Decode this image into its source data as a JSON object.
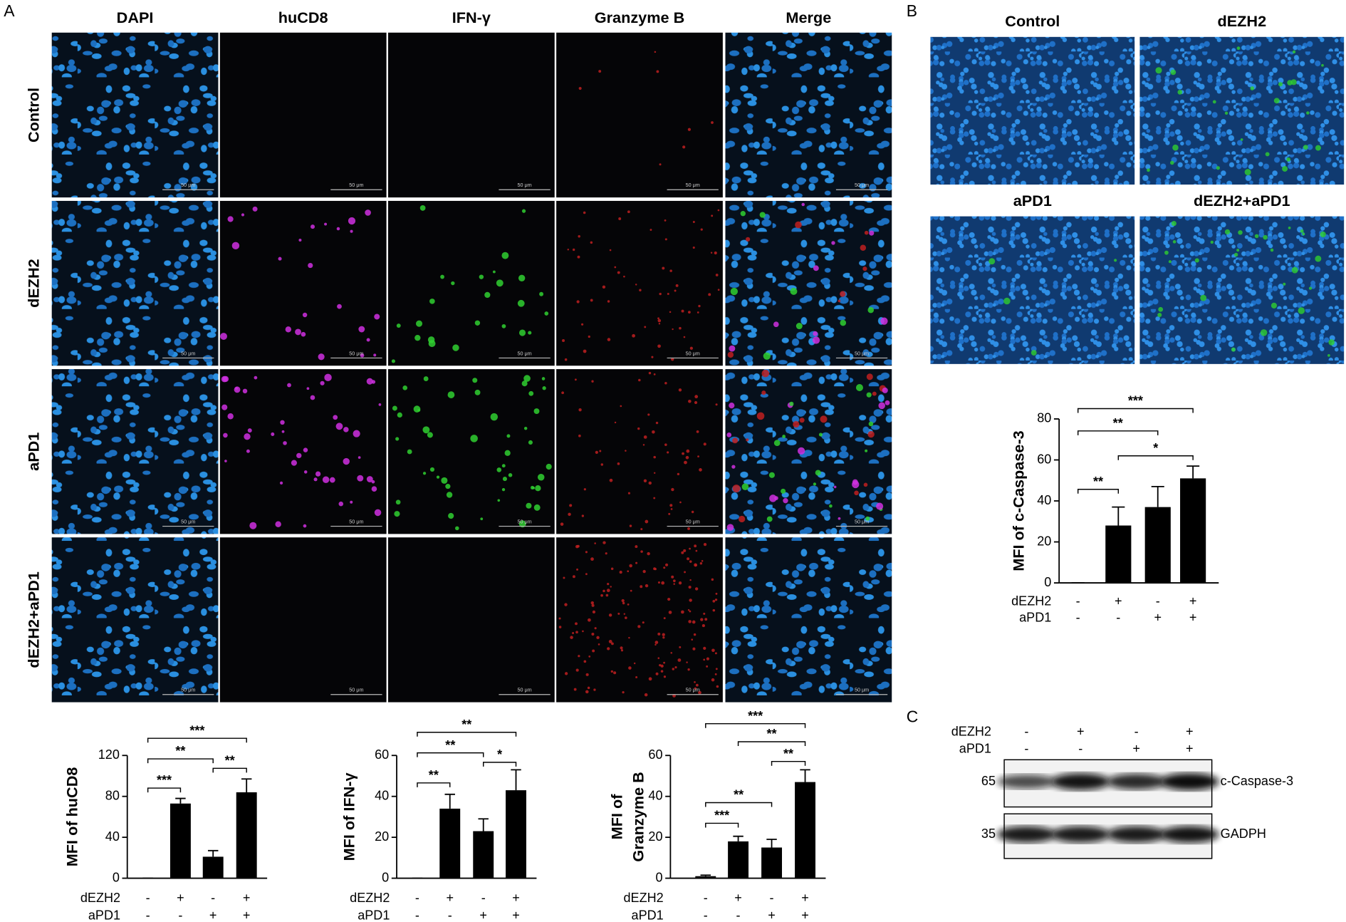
{
  "panel_labels": {
    "a": "A",
    "b": "B",
    "c": "C"
  },
  "panel_a": {
    "columns": [
      "DAPI",
      "huCD8",
      "IFN-γ",
      "Granzyme B",
      "Merge"
    ],
    "rows": [
      "Control",
      "dEZH2",
      "aPD1",
      "dEZH2+aPD1"
    ],
    "scale_bar": "50 μm"
  },
  "panel_b": {
    "images": [
      "Control",
      "dEZH2",
      "aPD1",
      "dEZH2+aPD1"
    ]
  },
  "panel_c": {
    "conditions": [
      {
        "name": "dEZH2",
        "signs": [
          "-",
          "+",
          "-",
          "+"
        ]
      },
      {
        "name": "aPD1",
        "signs": [
          "-",
          "-",
          "+",
          "+"
        ]
      }
    ],
    "bands": [
      {
        "marker": 65,
        "label": "c-Caspase-3"
      },
      {
        "marker": 35,
        "label": "GADPH"
      }
    ]
  },
  "chart_data": [
    {
      "type": "bar",
      "ylabel": "MFI of huCD8",
      "values": [
        0,
        73,
        21,
        84
      ],
      "errors": [
        0,
        5,
        6,
        13
      ],
      "color": "#000000",
      "ylim": [
        0,
        120
      ],
      "yticks": [
        0,
        40,
        80,
        120
      ],
      "significance": [
        "***",
        "**",
        "**",
        "***"
      ],
      "conditions": [
        {
          "name": "dEZH2",
          "signs": [
            "-",
            "+",
            "-",
            "+"
          ]
        },
        {
          "name": "aPD1",
          "signs": [
            "-",
            "-",
            "+",
            "+"
          ]
        }
      ]
    },
    {
      "type": "bar",
      "ylabel": "MFI of IFN-γ",
      "values": [
        0,
        34,
        23,
        43
      ],
      "errors": [
        0,
        7,
        6,
        10
      ],
      "color": "#000000",
      "ylim": [
        0,
        60
      ],
      "yticks": [
        0,
        20,
        40,
        60
      ],
      "significance": [
        "**",
        "**",
        "*",
        "**"
      ],
      "conditions": [
        {
          "name": "dEZH2",
          "signs": [
            "-",
            "+",
            "-",
            "+"
          ]
        },
        {
          "name": "aPD1",
          "signs": [
            "-",
            "-",
            "+",
            "+"
          ]
        }
      ]
    },
    {
      "type": "bar",
      "ylabel": [
        "MFI of",
        "Granzyme B"
      ],
      "values": [
        1,
        18,
        15,
        47
      ],
      "errors": [
        0.5,
        2.5,
        4,
        6
      ],
      "color": "#000000",
      "ylim": [
        0,
        60
      ],
      "yticks": [
        0,
        20,
        40,
        60
      ],
      "significance": [
        "***",
        "**",
        "**",
        "**",
        "***"
      ],
      "conditions": [
        {
          "name": "dEZH2",
          "signs": [
            "-",
            "+",
            "-",
            "+"
          ]
        },
        {
          "name": "aPD1",
          "signs": [
            "-",
            "-",
            "+",
            "+"
          ]
        }
      ]
    },
    {
      "type": "bar",
      "ylabel": "MFI of c-Caspase-3",
      "values": [
        0,
        28,
        37,
        51
      ],
      "errors": [
        0,
        9,
        10,
        6
      ],
      "color": "#000000",
      "ylim": [
        0,
        80
      ],
      "yticks": [
        0,
        20,
        40,
        60,
        80
      ],
      "significance": [
        "***",
        "**",
        "*",
        "**"
      ],
      "conditions": [
        {
          "name": "dEZH2",
          "signs": [
            "-",
            "+",
            "-",
            "+"
          ]
        },
        {
          "name": "aPD1",
          "signs": [
            "-",
            "-",
            "+",
            "+"
          ]
        }
      ]
    }
  ]
}
